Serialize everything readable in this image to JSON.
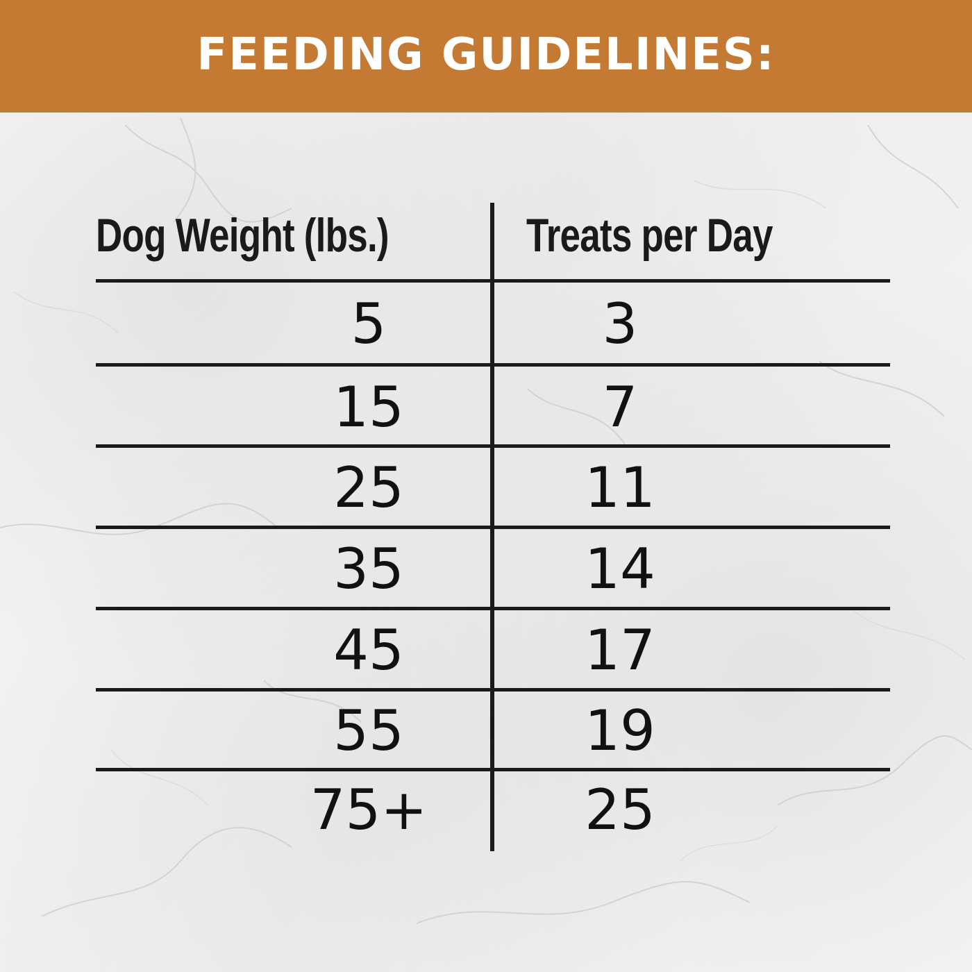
{
  "banner": {
    "title": "FEEDING GUIDELINES:",
    "color": "#c47a33"
  },
  "table": {
    "headers": {
      "weight": "Dog Weight (lbs.)",
      "treats": "Treats per Day"
    },
    "rows": [
      {
        "weight": "5",
        "treats": "3"
      },
      {
        "weight": "15",
        "treats": "7"
      },
      {
        "weight": "25",
        "treats": "11"
      },
      {
        "weight": "35",
        "treats": "14"
      },
      {
        "weight": "45",
        "treats": "17"
      },
      {
        "weight": "55",
        "treats": "19"
      },
      {
        "weight": "75+",
        "treats": "25"
      }
    ]
  }
}
